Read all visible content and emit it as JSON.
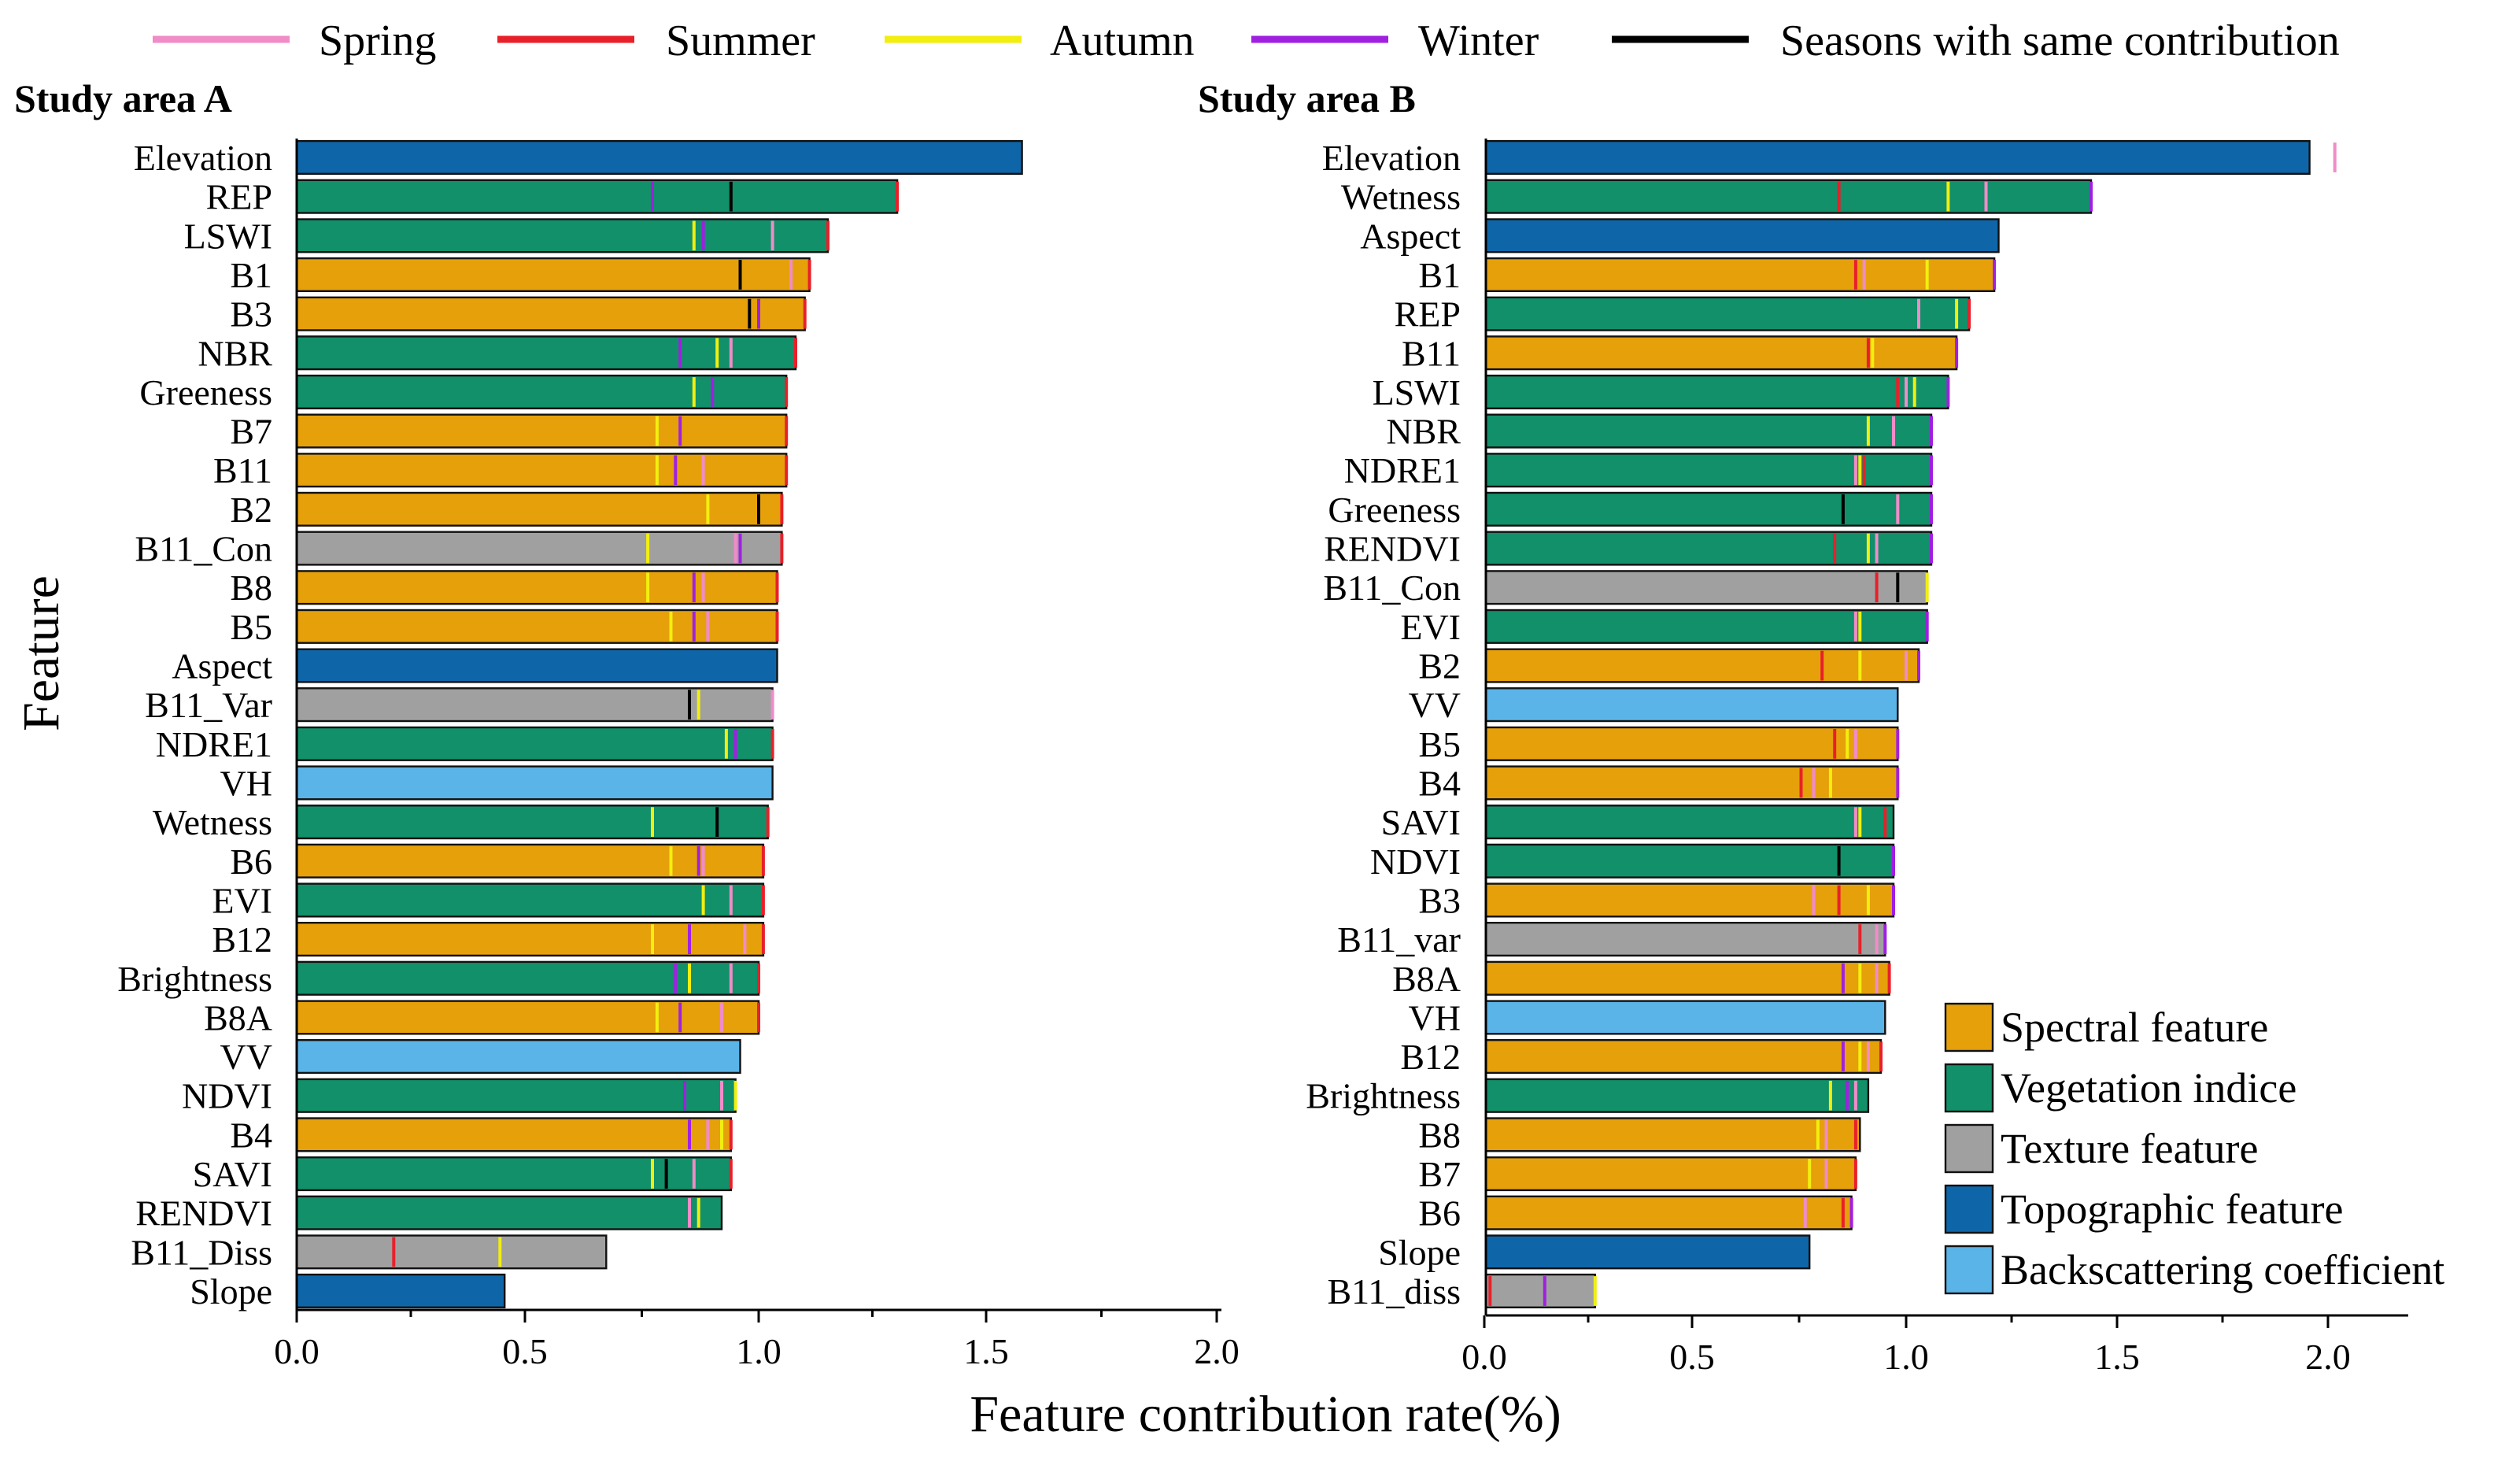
{
  "figure": {
    "xlabel": "Feature contribution rate(%)",
    "ylabel": "Feature"
  },
  "season_legend": [
    {
      "label": "Spring",
      "color": "#f08cc8"
    },
    {
      "label": "Summer",
      "color": "#e8202a"
    },
    {
      "label": "Autumn",
      "color": "#f2ee10"
    },
    {
      "label": "Winter",
      "color": "#a020e0"
    },
    {
      "label": "Seasons with same contribution",
      "color": "#000000"
    }
  ],
  "category_legend": [
    {
      "key": "spectral",
      "label": "Spectral feature",
      "color": "#e6a00a"
    },
    {
      "key": "vegetation",
      "label": "Vegetation indice",
      "color": "#11906a"
    },
    {
      "key": "texture",
      "label": "Texture feature",
      "color": "#a0a0a0"
    },
    {
      "key": "topographic",
      "label": "Topographic feature",
      "color": "#0e66a8"
    },
    {
      "key": "backscatter",
      "label": "Backscattering coefficient",
      "color": "#5ab4e8"
    }
  ],
  "chart_data": [
    {
      "type": "bar",
      "orientation": "horizontal",
      "title": "Study area A",
      "xlim": [
        0,
        2.0
      ],
      "xticks": [
        "0.0",
        "0.5",
        "1.0",
        "1.5",
        "2.0"
      ],
      "categories": [
        "Elevation",
        "REP",
        "LSWI",
        "B1",
        "B3",
        "NBR",
        "Greeness",
        "B7",
        "B11",
        "B2",
        "B11_Con",
        "B8",
        "B5",
        "Aspect",
        "B11_Var",
        "NDRE1",
        "VH",
        "Wetness",
        "B6",
        "EVI",
        "B12",
        "Brightness",
        "B8A",
        "VV",
        "NDVI",
        "B4",
        "SAVI",
        "RENDVI",
        "B11_Diss",
        "Slope"
      ],
      "values": [
        1.57,
        1.3,
        1.15,
        1.11,
        1.1,
        1.08,
        1.06,
        1.06,
        1.06,
        1.05,
        1.05,
        1.04,
        1.04,
        1.04,
        1.03,
        1.03,
        1.03,
        1.02,
        1.01,
        1.01,
        1.01,
        1.0,
        1.0,
        0.96,
        0.95,
        0.94,
        0.94,
        0.92,
        0.67,
        0.45
      ],
      "feature_type": [
        "topographic",
        "vegetation",
        "vegetation",
        "spectral",
        "spectral",
        "vegetation",
        "vegetation",
        "spectral",
        "spectral",
        "spectral",
        "texture",
        "spectral",
        "spectral",
        "topographic",
        "texture",
        "vegetation",
        "backscatter",
        "vegetation",
        "spectral",
        "vegetation",
        "spectral",
        "vegetation",
        "spectral",
        "backscatter",
        "vegetation",
        "spectral",
        "vegetation",
        "vegetation",
        "texture",
        "topographic"
      ],
      "season_marks": [
        [],
        [
          {
            "s": "winter",
            "v": 0.77
          },
          {
            "s": "same",
            "v": 0.94
          },
          {
            "s": "summer",
            "v": 1.3
          }
        ],
        [
          {
            "s": "autumn",
            "v": 0.86
          },
          {
            "s": "winter",
            "v": 0.88
          },
          {
            "s": "spring",
            "v": 1.03
          },
          {
            "s": "summer",
            "v": 1.15
          }
        ],
        [
          {
            "s": "same",
            "v": 0.96
          },
          {
            "s": "spring",
            "v": 1.07
          },
          {
            "s": "summer",
            "v": 1.11
          }
        ],
        [
          {
            "s": "same",
            "v": 0.98
          },
          {
            "s": "winter",
            "v": 1.0
          },
          {
            "s": "summer",
            "v": 1.1
          }
        ],
        [
          {
            "s": "winter",
            "v": 0.83
          },
          {
            "s": "autumn",
            "v": 0.91
          },
          {
            "s": "spring",
            "v": 0.94
          },
          {
            "s": "summer",
            "v": 1.08
          }
        ],
        [
          {
            "s": "autumn",
            "v": 0.86
          },
          {
            "s": "winter",
            "v": 0.9
          },
          {
            "s": "summer",
            "v": 1.06
          }
        ],
        [
          {
            "s": "autumn",
            "v": 0.78
          },
          {
            "s": "winter",
            "v": 0.83
          },
          {
            "s": "summer",
            "v": 1.06
          }
        ],
        [
          {
            "s": "autumn",
            "v": 0.78
          },
          {
            "s": "winter",
            "v": 0.82
          },
          {
            "s": "spring",
            "v": 0.88
          },
          {
            "s": "summer",
            "v": 1.06
          }
        ],
        [
          {
            "s": "autumn",
            "v": 0.89
          },
          {
            "s": "same",
            "v": 1.0
          },
          {
            "s": "summer",
            "v": 1.05
          }
        ],
        [
          {
            "s": "autumn",
            "v": 0.76
          },
          {
            "s": "spring",
            "v": 0.95
          },
          {
            "s": "winter",
            "v": 0.96
          },
          {
            "s": "summer",
            "v": 1.05
          }
        ],
        [
          {
            "s": "autumn",
            "v": 0.76
          },
          {
            "s": "winter",
            "v": 0.86
          },
          {
            "s": "spring",
            "v": 0.88
          },
          {
            "s": "summer",
            "v": 1.04
          }
        ],
        [
          {
            "s": "autumn",
            "v": 0.81
          },
          {
            "s": "winter",
            "v": 0.86
          },
          {
            "s": "spring",
            "v": 0.89
          },
          {
            "s": "summer",
            "v": 1.04
          }
        ],
        [],
        [
          {
            "s": "same",
            "v": 0.85
          },
          {
            "s": "autumn",
            "v": 0.87
          },
          {
            "s": "spring",
            "v": 1.03
          }
        ],
        [
          {
            "s": "autumn",
            "v": 0.93
          },
          {
            "s": "winter",
            "v": 0.95
          },
          {
            "s": "summer",
            "v": 1.03
          }
        ],
        [],
        [
          {
            "s": "autumn",
            "v": 0.77
          },
          {
            "s": "same",
            "v": 0.91
          },
          {
            "s": "summer",
            "v": 1.02
          }
        ],
        [
          {
            "s": "autumn",
            "v": 0.81
          },
          {
            "s": "winter",
            "v": 0.87
          },
          {
            "s": "spring",
            "v": 0.88
          },
          {
            "s": "summer",
            "v": 1.01
          }
        ],
        [
          {
            "s": "autumn",
            "v": 0.88
          },
          {
            "s": "spring",
            "v": 0.94
          },
          {
            "s": "summer",
            "v": 1.01
          }
        ],
        [
          {
            "s": "autumn",
            "v": 0.77
          },
          {
            "s": "winter",
            "v": 0.85
          },
          {
            "s": "spring",
            "v": 0.97
          },
          {
            "s": "summer",
            "v": 1.01
          }
        ],
        [
          {
            "s": "winter",
            "v": 0.82
          },
          {
            "s": "autumn",
            "v": 0.85
          },
          {
            "s": "spring",
            "v": 0.94
          },
          {
            "s": "summer",
            "v": 1.0
          }
        ],
        [
          {
            "s": "autumn",
            "v": 0.78
          },
          {
            "s": "winter",
            "v": 0.83
          },
          {
            "s": "spring",
            "v": 0.92
          },
          {
            "s": "summer",
            "v": 1.0
          }
        ],
        [],
        [
          {
            "s": "winter",
            "v": 0.84
          },
          {
            "s": "spring",
            "v": 0.92
          },
          {
            "s": "autumn",
            "v": 0.95
          }
        ],
        [
          {
            "s": "winter",
            "v": 0.85
          },
          {
            "s": "spring",
            "v": 0.89
          },
          {
            "s": "autumn",
            "v": 0.92
          },
          {
            "s": "summer",
            "v": 0.94
          }
        ],
        [
          {
            "s": "autumn",
            "v": 0.77
          },
          {
            "s": "same",
            "v": 0.8
          },
          {
            "s": "spring",
            "v": 0.86
          },
          {
            "s": "summer",
            "v": 0.94
          }
        ],
        [
          {
            "s": "spring",
            "v": 0.85
          },
          {
            "s": "autumn",
            "v": 0.87
          }
        ],
        [
          {
            "s": "summer",
            "v": 0.21
          },
          {
            "s": "autumn",
            "v": 0.44
          }
        ],
        []
      ]
    },
    {
      "type": "bar",
      "orientation": "horizontal",
      "title": "Study area  B",
      "xlim": [
        0,
        2.2
      ],
      "xticks": [
        "0.0",
        "0.5",
        "1.0",
        "1.5",
        "2.0"
      ],
      "categories": [
        "Elevation",
        "Wetness",
        "Aspect",
        "B1",
        "REP",
        "B11",
        "LSWI",
        "NBR",
        "NDRE1",
        "Greeness",
        "RENDVI",
        "B11_Con",
        "EVI",
        "B2",
        "VV",
        "B5",
        "B4",
        "SAVI",
        "NDVI",
        "B3",
        "B11_var",
        "B8A",
        "VH",
        "B12",
        "Brightness",
        "B8",
        "B7",
        "B6",
        "Slope",
        "B11_diss"
      ],
      "values": [
        1.96,
        1.44,
        1.22,
        1.21,
        1.15,
        1.12,
        1.1,
        1.06,
        1.06,
        1.06,
        1.06,
        1.05,
        1.05,
        1.03,
        0.98,
        0.98,
        0.98,
        0.97,
        0.97,
        0.97,
        0.95,
        0.96,
        0.95,
        0.94,
        0.91,
        0.89,
        0.88,
        0.87,
        0.77,
        0.26
      ],
      "feature_type": [
        "topographic",
        "vegetation",
        "topographic",
        "spectral",
        "vegetation",
        "spectral",
        "vegetation",
        "vegetation",
        "vegetation",
        "vegetation",
        "vegetation",
        "texture",
        "vegetation",
        "spectral",
        "backscatter",
        "spectral",
        "spectral",
        "vegetation",
        "vegetation",
        "spectral",
        "texture",
        "spectral",
        "backscatter",
        "spectral",
        "vegetation",
        "spectral",
        "spectral",
        "spectral",
        "topographic",
        "texture"
      ],
      "season_marks": [
        [
          {
            "s": "spring",
            "v": 2.02
          }
        ],
        [
          {
            "s": "summer",
            "v": 0.84
          },
          {
            "s": "autumn",
            "v": 1.1
          },
          {
            "s": "spring",
            "v": 1.19
          },
          {
            "s": "winter",
            "v": 1.44
          }
        ],
        [],
        [
          {
            "s": "summer",
            "v": 0.88
          },
          {
            "s": "spring",
            "v": 0.9
          },
          {
            "s": "autumn",
            "v": 1.05
          },
          {
            "s": "winter",
            "v": 1.21
          }
        ],
        [
          {
            "s": "spring",
            "v": 1.03
          },
          {
            "s": "autumn",
            "v": 1.12
          },
          {
            "s": "summer",
            "v": 1.15
          }
        ],
        [
          {
            "s": "summer",
            "v": 0.91
          },
          {
            "s": "autumn",
            "v": 0.92
          },
          {
            "s": "winter",
            "v": 1.12
          }
        ],
        [
          {
            "s": "summer",
            "v": 0.98
          },
          {
            "s": "spring",
            "v": 1.0
          },
          {
            "s": "autumn",
            "v": 1.02
          },
          {
            "s": "winter",
            "v": 1.1
          }
        ],
        [
          {
            "s": "autumn",
            "v": 0.91
          },
          {
            "s": "spring",
            "v": 0.97
          },
          {
            "s": "winter",
            "v": 1.06
          }
        ],
        [
          {
            "s": "spring",
            "v": 0.88
          },
          {
            "s": "autumn",
            "v": 0.89
          },
          {
            "s": "summer",
            "v": 0.9
          },
          {
            "s": "winter",
            "v": 1.06
          }
        ],
        [
          {
            "s": "same",
            "v": 0.85
          },
          {
            "s": "spring",
            "v": 0.98
          },
          {
            "s": "winter",
            "v": 1.06
          }
        ],
        [
          {
            "s": "summer",
            "v": 0.83
          },
          {
            "s": "autumn",
            "v": 0.91
          },
          {
            "s": "spring",
            "v": 0.93
          },
          {
            "s": "winter",
            "v": 1.06
          }
        ],
        [
          {
            "s": "summer",
            "v": 0.93
          },
          {
            "s": "same",
            "v": 0.98
          },
          {
            "s": "autumn",
            "v": 1.05
          }
        ],
        [
          {
            "s": "spring",
            "v": 0.88
          },
          {
            "s": "autumn",
            "v": 0.89
          },
          {
            "s": "winter",
            "v": 1.05
          }
        ],
        [
          {
            "s": "summer",
            "v": 0.8
          },
          {
            "s": "autumn",
            "v": 0.89
          },
          {
            "s": "spring",
            "v": 1.0
          },
          {
            "s": "winter",
            "v": 1.03
          }
        ],
        [],
        [
          {
            "s": "summer",
            "v": 0.83
          },
          {
            "s": "autumn",
            "v": 0.86
          },
          {
            "s": "spring",
            "v": 0.88
          },
          {
            "s": "winter",
            "v": 0.98
          }
        ],
        [
          {
            "s": "summer",
            "v": 0.75
          },
          {
            "s": "spring",
            "v": 0.78
          },
          {
            "s": "autumn",
            "v": 0.82
          },
          {
            "s": "winter",
            "v": 0.98
          }
        ],
        [
          {
            "s": "spring",
            "v": 0.88
          },
          {
            "s": "autumn",
            "v": 0.89
          },
          {
            "s": "summer",
            "v": 0.95
          }
        ],
        [
          {
            "s": "same",
            "v": 0.84
          },
          {
            "s": "winter",
            "v": 0.97
          }
        ],
        [
          {
            "s": "spring",
            "v": 0.78
          },
          {
            "s": "summer",
            "v": 0.84
          },
          {
            "s": "autumn",
            "v": 0.91
          },
          {
            "s": "winter",
            "v": 0.97
          }
        ],
        [
          {
            "s": "summer",
            "v": 0.89
          },
          {
            "s": "spring",
            "v": 0.93
          },
          {
            "s": "winter",
            "v": 0.95
          }
        ],
        [
          {
            "s": "winter",
            "v": 0.85
          },
          {
            "s": "autumn",
            "v": 0.89
          },
          {
            "s": "spring",
            "v": 0.93
          },
          {
            "s": "summer",
            "v": 0.96
          }
        ],
        [],
        [
          {
            "s": "winter",
            "v": 0.85
          },
          {
            "s": "autumn",
            "v": 0.89
          },
          {
            "s": "spring",
            "v": 0.91
          },
          {
            "s": "summer",
            "v": 0.94
          }
        ],
        [
          {
            "s": "autumn",
            "v": 0.82
          },
          {
            "s": "winter",
            "v": 0.86
          },
          {
            "s": "spring",
            "v": 0.88
          }
        ],
        [
          {
            "s": "autumn",
            "v": 0.79
          },
          {
            "s": "spring",
            "v": 0.81
          },
          {
            "s": "summer",
            "v": 0.88
          }
        ],
        [
          {
            "s": "autumn",
            "v": 0.77
          },
          {
            "s": "spring",
            "v": 0.81
          },
          {
            "s": "summer",
            "v": 0.88
          }
        ],
        [
          {
            "s": "spring",
            "v": 0.76
          },
          {
            "s": "summer",
            "v": 0.85
          },
          {
            "s": "winter",
            "v": 0.87
          }
        ],
        [],
        [
          {
            "s": "summer",
            "v": 0.01
          },
          {
            "s": "winter",
            "v": 0.14
          },
          {
            "s": "autumn",
            "v": 0.26
          }
        ]
      ]
    }
  ]
}
